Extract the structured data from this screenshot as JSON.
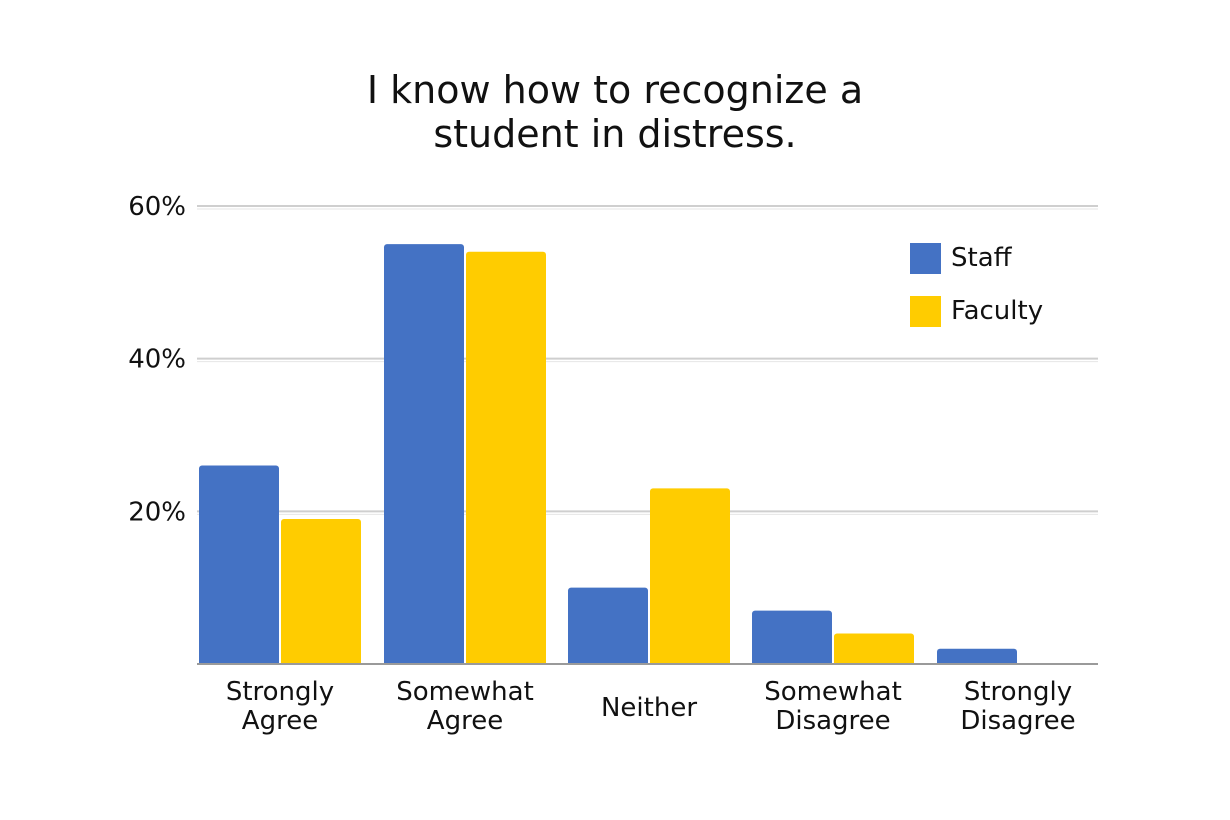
{
  "chart_data": {
    "type": "bar",
    "title_lines": [
      "I know how to recognize a",
      "student in distress."
    ],
    "categories": [
      [
        "Strongly",
        "Agree"
      ],
      [
        "Somewhat",
        "Agree"
      ],
      [
        "Neither"
      ],
      [
        "Somewhat",
        "Disagree"
      ],
      [
        "Strongly",
        "Disagree"
      ]
    ],
    "series": [
      {
        "name": "Staff",
        "color": "#4472C4",
        "values": [
          26,
          55,
          10,
          7,
          2
        ]
      },
      {
        "name": "Faculty",
        "color": "#FFCC00",
        "values": [
          19,
          54,
          23,
          4,
          0
        ]
      }
    ],
    "ylim": [
      0,
      60
    ],
    "yticks": [
      {
        "value": 20,
        "label": "20%"
      },
      {
        "value": 40,
        "label": "40%"
      },
      {
        "value": 60,
        "label": "60%"
      }
    ],
    "grid": true,
    "legend_position": "top-right"
  }
}
